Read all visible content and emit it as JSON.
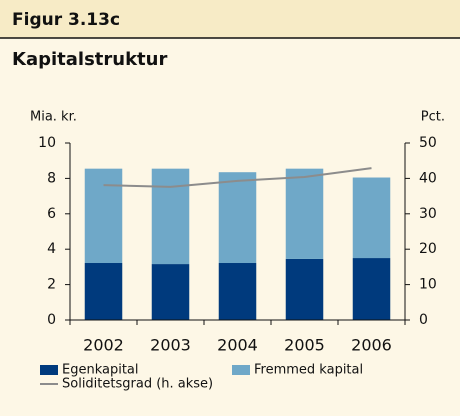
{
  "figure_label": "Figur 3.13c",
  "chart_data": {
    "type": "bar",
    "stacked": true,
    "title": "Kapitalstruktur",
    "y_label": "Mia. kr.",
    "y2_label": "Pct.",
    "categories": [
      "2002",
      "2003",
      "2004",
      "2005",
      "2006"
    ],
    "series": [
      {
        "name": "Egenkapital",
        "color": "#003a7d",
        "values": [
          3.22,
          3.16,
          3.22,
          3.45,
          3.5
        ]
      },
      {
        "name": "Fremmed kapital",
        "color": "#6fa8c8",
        "values": [
          5.33,
          5.39,
          5.13,
          5.1,
          4.55
        ]
      },
      {
        "name": "Soliditetsgrad (h. akse)",
        "color": "#8c8c8c",
        "type": "line",
        "axis": "y2",
        "values": [
          38.1,
          37.6,
          39.3,
          40.4,
          42.9
        ]
      }
    ],
    "ylim": [
      0,
      10
    ],
    "yticks": [
      0,
      2,
      4,
      6,
      8,
      10
    ],
    "y2lim": [
      0,
      50
    ],
    "y2ticks": [
      0,
      10,
      20,
      30,
      40,
      50
    ]
  }
}
